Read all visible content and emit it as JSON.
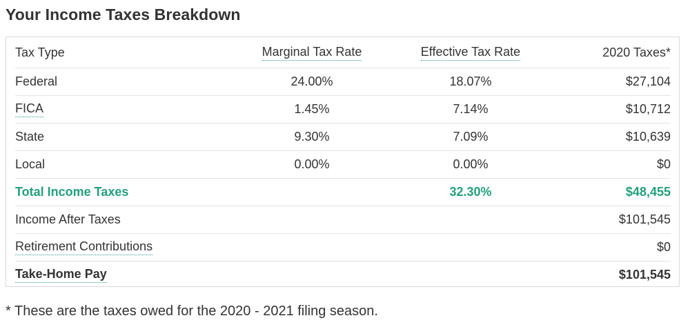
{
  "title": "Your Income Taxes Breakdown",
  "table": {
    "headers": {
      "tax_type": "Tax Type",
      "marginal": "Marginal Tax Rate",
      "effective": "Effective Tax Rate",
      "taxes": "2020 Taxes*"
    },
    "rows": [
      {
        "label": "Federal",
        "marginal": "24.00%",
        "effective": "18.07%",
        "taxes": "$27,104"
      },
      {
        "label": "FICA",
        "marginal": "1.45%",
        "effective": "7.14%",
        "taxes": "$10,712"
      },
      {
        "label": "State",
        "marginal": "9.30%",
        "effective": "7.09%",
        "taxes": "$10,639"
      },
      {
        "label": "Local",
        "marginal": "0.00%",
        "effective": "0.00%",
        "taxes": "$0"
      }
    ],
    "total": {
      "label": "Total Income Taxes",
      "effective": "32.30%",
      "taxes": "$48,455"
    },
    "after_taxes": {
      "label": "Income After Taxes",
      "taxes": "$101,545"
    },
    "retirement": {
      "label": "Retirement Contributions",
      "taxes": "$0"
    },
    "take_home": {
      "label": "Take-Home Pay",
      "taxes": "$101,545"
    }
  },
  "footnote": "* These are the taxes owed for the 2020 - 2021 filing season.",
  "colors": {
    "accent": "#23a07c",
    "text": "#333333",
    "border": "#d9d9d9"
  }
}
